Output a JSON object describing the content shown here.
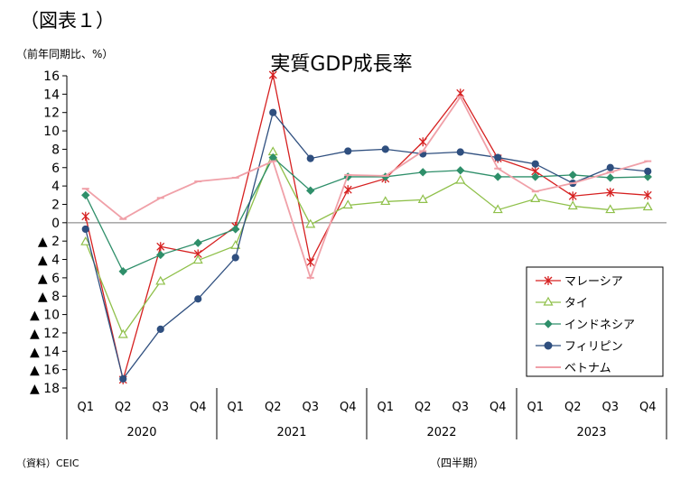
{
  "figure_label": "（図表１）",
  "unit_label": "（前年同期比、%）",
  "source": "（資料）CEIC",
  "x_axis_note": "（四半期）",
  "chart_data": {
    "type": "line",
    "title": "実質GDP成長率",
    "categories": [
      "Q1",
      "Q2",
      "Q3",
      "Q4",
      "Q1",
      "Q2",
      "Q3",
      "Q4",
      "Q1",
      "Q2",
      "Q3",
      "Q4",
      "Q1",
      "Q2",
      "Q3",
      "Q4"
    ],
    "years": [
      {
        "label": "2020",
        "start": 0,
        "end": 3
      },
      {
        "label": "2021",
        "start": 4,
        "end": 7
      },
      {
        "label": "2022",
        "start": 8,
        "end": 11
      },
      {
        "label": "2023",
        "start": 12,
        "end": 15
      }
    ],
    "ylim": [
      -18,
      16
    ],
    "yticks": [
      {
        "value": 16,
        "label": "16"
      },
      {
        "value": 14,
        "label": "14"
      },
      {
        "value": 12,
        "label": "12"
      },
      {
        "value": 10,
        "label": "10"
      },
      {
        "value": 8,
        "label": "8"
      },
      {
        "value": 6,
        "label": "6"
      },
      {
        "value": 4,
        "label": "4"
      },
      {
        "value": 2,
        "label": "2"
      },
      {
        "value": 0,
        "label": "0"
      },
      {
        "value": -2,
        "label": "▲ 2"
      },
      {
        "value": -4,
        "label": "▲ 4"
      },
      {
        "value": -6,
        "label": "▲ 6"
      },
      {
        "value": -8,
        "label": "▲ 8"
      },
      {
        "value": -10,
        "label": "▲ 10"
      },
      {
        "value": -12,
        "label": "▲ 12"
      },
      {
        "value": -14,
        "label": "▲ 14"
      },
      {
        "value": -16,
        "label": "▲ 16"
      },
      {
        "value": -18,
        "label": "▲ 18"
      }
    ],
    "grid": false,
    "legend_position": "bottom-right",
    "series": [
      {
        "name": "マレーシア",
        "color": "#d62020",
        "marker": "asterisk",
        "values": [
          0.7,
          -17.1,
          -2.6,
          -3.4,
          -0.4,
          16.1,
          -4.3,
          3.6,
          4.8,
          8.8,
          14.1,
          7.0,
          5.6,
          2.9,
          3.3,
          3.0
        ]
      },
      {
        "name": "タイ",
        "color": "#8fc04a",
        "marker": "triangle",
        "values": [
          -2.1,
          -12.2,
          -6.4,
          -4.1,
          -2.5,
          7.7,
          -0.2,
          1.9,
          2.3,
          2.5,
          4.6,
          1.4,
          2.6,
          1.8,
          1.4,
          1.7
        ]
      },
      {
        "name": "インドネシア",
        "color": "#2f8f6a",
        "marker": "diamond",
        "values": [
          3.0,
          -5.3,
          -3.5,
          -2.2,
          -0.7,
          7.1,
          3.5,
          5.0,
          5.0,
          5.5,
          5.7,
          5.0,
          5.0,
          5.2,
          4.9,
          5.0
        ]
      },
      {
        "name": "フィリピン",
        "color": "#2f4f7f",
        "marker": "circle",
        "values": [
          -0.7,
          -17.0,
          -11.6,
          -8.3,
          -3.8,
          12.0,
          7.0,
          7.8,
          8.0,
          7.5,
          7.7,
          7.1,
          6.4,
          4.3,
          6.0,
          5.6
        ]
      },
      {
        "name": "ベトナム",
        "color": "#f0a0a8",
        "marker": "dash",
        "values": [
          3.7,
          0.4,
          2.7,
          4.5,
          4.9,
          6.7,
          -6.0,
          5.2,
          5.1,
          7.8,
          13.7,
          5.9,
          3.4,
          4.3,
          5.5,
          6.7
        ]
      }
    ]
  }
}
